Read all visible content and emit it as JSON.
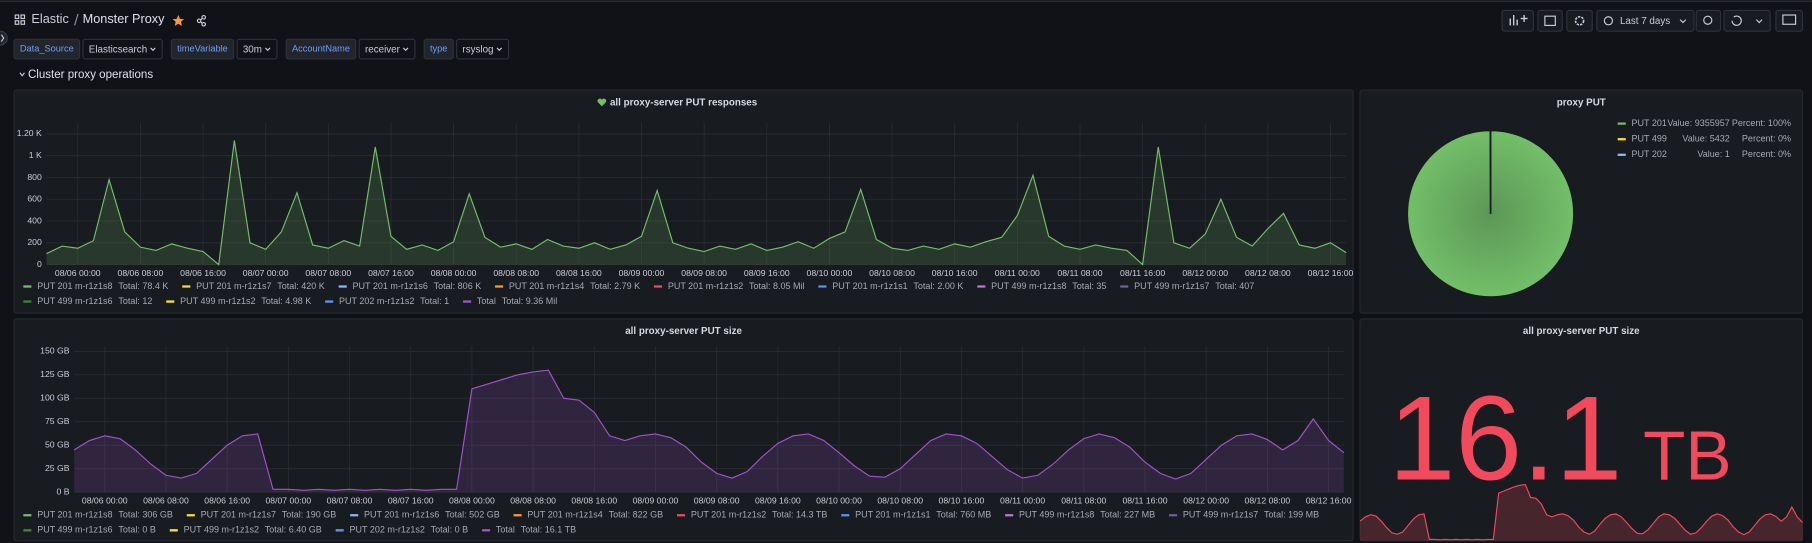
{
  "header": {
    "breadcrumb_root": "Elastic",
    "title": "Monster Proxy",
    "time_range": "Last 7 days"
  },
  "variables": [
    {
      "label": "Data_Source",
      "value": "Elasticsearch"
    },
    {
      "label": "timeVariable",
      "value": "30m"
    },
    {
      "label": "AccountName",
      "value": "receiver"
    },
    {
      "label": "type",
      "value": "rsyslog"
    }
  ],
  "row_title": "Cluster proxy operations",
  "chart_data": [
    {
      "type": "line",
      "title": "all proxy-server PUT responses",
      "x": [
        "08/05 20:00",
        "08/05 22:00",
        "08/06 00:00",
        "08/06 02:00",
        "08/06 04:00",
        "08/06 06:00",
        "08/06 08:00",
        "08/06 10:00",
        "08/06 12:00",
        "08/06 14:00",
        "08/06 16:00",
        "08/06 18:00",
        "08/06 20:00",
        "08/06 22:00",
        "08/07 00:00",
        "08/07 02:00",
        "08/07 04:00",
        "08/07 06:00",
        "08/07 08:00",
        "08/07 10:00",
        "08/07 12:00",
        "08/07 14:00",
        "08/07 16:00",
        "08/07 18:00",
        "08/07 20:00",
        "08/07 22:00",
        "08/08 00:00",
        "08/08 02:00",
        "08/08 04:00",
        "08/08 06:00",
        "08/08 08:00",
        "08/08 10:00",
        "08/08 12:00",
        "08/08 14:00",
        "08/08 16:00",
        "08/08 18:00",
        "08/08 20:00",
        "08/08 22:00",
        "08/09 00:00",
        "08/09 02:00",
        "08/09 04:00",
        "08/09 06:00",
        "08/09 08:00",
        "08/09 10:00",
        "08/09 12:00",
        "08/09 14:00",
        "08/09 16:00",
        "08/09 18:00",
        "08/09 20:00",
        "08/09 22:00",
        "08/10 00:00",
        "08/10 02:00",
        "08/10 04:00",
        "08/10 06:00",
        "08/10 08:00",
        "08/10 10:00",
        "08/10 12:00",
        "08/10 14:00",
        "08/10 16:00",
        "08/10 18:00",
        "08/10 20:00",
        "08/10 22:00",
        "08/11 00:00",
        "08/11 02:00",
        "08/11 04:00",
        "08/11 06:00",
        "08/11 08:00",
        "08/11 10:00",
        "08/11 12:00",
        "08/11 14:00",
        "08/11 16:00",
        "08/11 18:00",
        "08/11 20:00",
        "08/11 22:00",
        "08/12 00:00",
        "08/12 02:00",
        "08/12 04:00",
        "08/12 06:00",
        "08/12 08:00",
        "08/12 10:00",
        "08/12 12:00",
        "08/12 14:00",
        "08/12 16:00",
        "08/12 18:00"
      ],
      "xlim": [
        "08/05 20:00",
        "08/12 18:00"
      ],
      "xticks": [
        "08/06 00:00",
        "08/06 08:00",
        "08/06 16:00",
        "08/07 00:00",
        "08/07 08:00",
        "08/07 16:00",
        "08/08 00:00",
        "08/08 08:00",
        "08/08 16:00",
        "08/09 00:00",
        "08/09 08:00",
        "08/09 16:00",
        "08/10 00:00",
        "08/10 08:00",
        "08/10 16:00",
        "08/11 00:00",
        "08/11 08:00",
        "08/11 16:00",
        "08/12 00:00",
        "08/12 08:00",
        "08/12 16:00"
      ],
      "ylim": [
        0,
        1300
      ],
      "yticks": [
        0,
        200,
        400,
        600,
        800,
        {
          "value": 1000,
          "label": "1 K"
        },
        {
          "value": 1200,
          "label": "1.20 K"
        }
      ],
      "grid": true,
      "series": [
        {
          "name": "PUT 201 m-r1z1s8",
          "color": "#73bf69",
          "total": "Total: 78.4 K",
          "values": [
            100,
            170,
            150,
            220,
            780,
            300,
            160,
            130,
            190,
            150,
            120,
            0,
            1140,
            200,
            140,
            300,
            660,
            180,
            150,
            220,
            170,
            1080,
            260,
            140,
            180,
            130,
            210,
            650,
            250,
            160,
            190,
            140,
            230,
            170,
            150,
            200,
            140,
            180,
            260,
            680,
            200,
            150,
            120,
            170,
            140,
            190,
            130,
            160,
            210,
            150,
            240,
            300,
            690,
            230,
            150,
            130,
            170,
            140,
            190,
            160,
            210,
            250,
            450,
            820,
            260,
            170,
            140,
            180,
            150,
            130,
            0,
            1080,
            200,
            150,
            280,
            600,
            250,
            170,
            330,
            470,
            180,
            150,
            200,
            110
          ]
        },
        {
          "name": "PUT 201 m-r1z1s7",
          "color": "#fade2a",
          "total": "Total: 420 K"
        },
        {
          "name": "PUT 201 m-r1z1s6",
          "color": "#8ab8ff",
          "total": "Total: 806 K"
        },
        {
          "name": "PUT 201 m-r1z1s4",
          "color": "#ff9830",
          "total": "Total: 2.79 K"
        },
        {
          "name": "PUT 201 m-r1z1s2",
          "color": "#f2495c",
          "total": "Total: 8.05 Mil"
        },
        {
          "name": "PUT 201 m-r1z1s1",
          "color": "#5794f2",
          "total": "Total: 2.00 K"
        },
        {
          "name": "PUT 499 m-r1z1s8",
          "color": "#b877d9",
          "total": "Total: 35"
        },
        {
          "name": "PUT 499 m-r1z1s7",
          "color": "#705da0",
          "total": "Total: 407"
        },
        {
          "name": "PUT 499 m-r1z1s6",
          "color": "#37872d",
          "total": "Total: 12"
        },
        {
          "name": "PUT 499 m-r1z1s2",
          "color": "#fade2a",
          "total": "Total: 4.98 K"
        },
        {
          "name": "PUT 202 m-r1z1s2",
          "color": "#5794f2",
          "total": "Total: 1"
        },
        {
          "name": "Total",
          "color": "#a352cc",
          "total": "Total: 9.36 Mil"
        }
      ]
    },
    {
      "type": "line",
      "title": "all proxy-server PUT size",
      "x": [
        "08/05 20:00",
        "08/05 22:00",
        "08/06 00:00",
        "08/06 02:00",
        "08/06 04:00",
        "08/06 06:00",
        "08/06 08:00",
        "08/06 10:00",
        "08/06 12:00",
        "08/06 14:00",
        "08/06 16:00",
        "08/06 18:00",
        "08/06 20:00",
        "08/06 22:00",
        "08/07 00:00",
        "08/07 02:00",
        "08/07 04:00",
        "08/07 06:00",
        "08/07 08:00",
        "08/07 10:00",
        "08/07 12:00",
        "08/07 14:00",
        "08/07 16:00",
        "08/07 18:00",
        "08/07 20:00",
        "08/07 22:00",
        "08/08 00:00",
        "08/08 02:00",
        "08/08 04:00",
        "08/08 06:00",
        "08/08 08:00",
        "08/08 10:00",
        "08/08 12:00",
        "08/08 14:00",
        "08/08 16:00",
        "08/08 18:00",
        "08/08 20:00",
        "08/08 22:00",
        "08/09 00:00",
        "08/09 02:00",
        "08/09 04:00",
        "08/09 06:00",
        "08/09 08:00",
        "08/09 10:00",
        "08/09 12:00",
        "08/09 14:00",
        "08/09 16:00",
        "08/09 18:00",
        "08/09 20:00",
        "08/09 22:00",
        "08/10 00:00",
        "08/10 02:00",
        "08/10 04:00",
        "08/10 06:00",
        "08/10 08:00",
        "08/10 10:00",
        "08/10 12:00",
        "08/10 14:00",
        "08/10 16:00",
        "08/10 18:00",
        "08/10 20:00",
        "08/10 22:00",
        "08/11 00:00",
        "08/11 02:00",
        "08/11 04:00",
        "08/11 06:00",
        "08/11 08:00",
        "08/11 10:00",
        "08/11 12:00",
        "08/11 14:00",
        "08/11 16:00",
        "08/11 18:00",
        "08/11 20:00",
        "08/11 22:00",
        "08/12 00:00",
        "08/12 02:00",
        "08/12 04:00",
        "08/12 06:00",
        "08/12 08:00",
        "08/12 10:00",
        "08/12 12:00",
        "08/12 14:00",
        "08/12 16:00",
        "08/12 18:00"
      ],
      "xlim": [
        "08/05 20:00",
        "08/12 18:00"
      ],
      "xticks": [
        "08/06 00:00",
        "08/06 08:00",
        "08/06 16:00",
        "08/07 00:00",
        "08/07 08:00",
        "08/07 16:00",
        "08/08 00:00",
        "08/08 08:00",
        "08/08 16:00",
        "08/09 00:00",
        "08/09 08:00",
        "08/09 16:00",
        "08/10 00:00",
        "08/10 08:00",
        "08/10 16:00",
        "08/11 00:00",
        "08/11 08:00",
        "08/11 16:00",
        "08/12 00:00",
        "08/12 08:00",
        "08/12 16:00"
      ],
      "ylim": [
        0,
        155
      ],
      "yticks": [
        {
          "value": 0,
          "label": "0 B"
        },
        {
          "value": 25,
          "label": "25 GB"
        },
        {
          "value": 50,
          "label": "50 GB"
        },
        {
          "value": 75,
          "label": "75 GB"
        },
        {
          "value": 100,
          "label": "100 GB"
        },
        {
          "value": 125,
          "label": "125 GB"
        },
        {
          "value": 150,
          "label": "150 GB"
        }
      ],
      "grid": true,
      "series": [
        {
          "name": "PUT 201 m-r1z1s8",
          "color": "#73bf69",
          "total": "Total: 306 GB"
        },
        {
          "name": "PUT 201 m-r1z1s7",
          "color": "#fade2a",
          "total": "Total: 190 GB"
        },
        {
          "name": "PUT 201 m-r1z1s6",
          "color": "#8ab8ff",
          "total": "Total: 502 GB"
        },
        {
          "name": "PUT 201 m-r1z1s4",
          "color": "#ff9830",
          "total": "Total: 822 GB"
        },
        {
          "name": "PUT 201 m-r1z1s2",
          "color": "#f2495c",
          "total": "Total: 14.3 TB"
        },
        {
          "name": "PUT 201 m-r1z1s1",
          "color": "#5794f2",
          "total": "Total: 760 MB"
        },
        {
          "name": "PUT 499 m-r1z1s8",
          "color": "#b877d9",
          "total": "Total: 227 MB"
        },
        {
          "name": "PUT 499 m-r1z1s7",
          "color": "#705da0",
          "total": "Total: 199 MB"
        },
        {
          "name": "PUT 499 m-r1z1s6",
          "color": "#37872d",
          "total": "Total: 0 B"
        },
        {
          "name": "PUT 499 m-r1z1s2",
          "color": "#fade2a",
          "total": "Total: 6.40 GB"
        },
        {
          "name": "PUT 202 m-r1z1s2",
          "color": "#5794f2",
          "total": "Total: 0 B"
        },
        {
          "name": "Total",
          "color": "#a352cc",
          "total": "Total: 16.1 TB",
          "values": [
            45,
            55,
            60,
            57,
            45,
            30,
            18,
            15,
            20,
            35,
            50,
            60,
            62,
            3,
            3,
            2,
            3,
            2,
            3,
            2,
            3,
            2,
            3,
            2,
            3,
            3,
            110,
            115,
            120,
            125,
            128,
            130,
            100,
            98,
            85,
            60,
            55,
            60,
            62,
            58,
            48,
            32,
            20,
            15,
            22,
            38,
            52,
            60,
            62,
            55,
            42,
            28,
            17,
            16,
            25,
            40,
            55,
            62,
            60,
            52,
            38,
            24,
            15,
            18,
            30,
            45,
            57,
            62,
            58,
            48,
            32,
            20,
            14,
            20,
            35,
            50,
            60,
            62,
            56,
            45,
            55,
            78,
            55,
            42
          ]
        }
      ]
    },
    {
      "type": "pie",
      "title": "proxy PUT",
      "series": [
        {
          "name": "PUT 201",
          "color": "#73bf69",
          "value": 9355957,
          "value_label": "Value: 9355957",
          "percent_label": "Percent: 100%"
        },
        {
          "name": "PUT 499",
          "color": "#fade2a",
          "value": 5432,
          "value_label": "Value: 5432",
          "percent_label": "Percent: 0%"
        },
        {
          "name": "PUT 202",
          "color": "#8ab8ff",
          "value": 1,
          "value_label": "Value: 1",
          "percent_label": "Percent: 0%"
        }
      ]
    },
    {
      "type": "stat",
      "title": "all proxy-server PUT size",
      "value": 16.1,
      "unit": "TB",
      "color": "#f2495c"
    }
  ]
}
